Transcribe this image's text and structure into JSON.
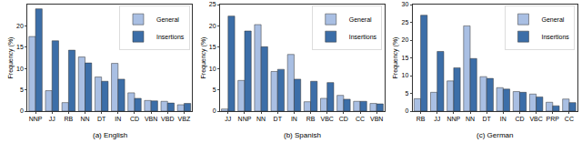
{
  "chart_data": [
    {
      "type": "bar",
      "title": "(a) English",
      "y_label": "Frequency (%)",
      "categories": [
        "NNP",
        "JJ",
        "RB",
        "NN",
        "DT",
        "IN",
        "CD",
        "VBN",
        "VBD",
        "VBZ"
      ],
      "series": [
        {
          "name": "General",
          "color": "#a9bfe3",
          "values": [
            17.5,
            4.8,
            2.0,
            12.7,
            8.0,
            11.2,
            4.3,
            2.5,
            2.3,
            1.5
          ]
        },
        {
          "name": "Insertions",
          "color": "#3c6ea8",
          "values": [
            24.0,
            16.5,
            14.3,
            11.3,
            7.0,
            7.5,
            3.0,
            2.4,
            1.9,
            1.8
          ]
        }
      ],
      "ylim": [
        0,
        25
      ],
      "yticks": [
        0,
        5,
        10,
        15,
        20
      ],
      "grid": false,
      "legend": "upper right"
    },
    {
      "type": "bar",
      "title": "(b) Spanish",
      "y_label": "Frequency (%)",
      "categories": [
        "JJ",
        "NNP",
        "NN",
        "DT",
        "IN",
        "RB",
        "VBC",
        "CD",
        "CC",
        "VBN"
      ],
      "series": [
        {
          "name": "General",
          "color": "#a9bfe3",
          "values": [
            0.5,
            7.2,
            20.3,
            9.3,
            13.3,
            2.2,
            3.0,
            3.7,
            2.3,
            1.8
          ]
        },
        {
          "name": "Insertions",
          "color": "#3c6ea8",
          "values": [
            22.3,
            18.8,
            15.1,
            9.8,
            7.5,
            7.0,
            6.7,
            2.8,
            2.3,
            1.7
          ]
        }
      ],
      "ylim": [
        0,
        25
      ],
      "yticks": [
        0,
        5,
        10,
        15,
        20,
        25
      ],
      "grid": false,
      "legend": "upper right"
    },
    {
      "type": "bar",
      "title": "(c) German",
      "y_label": "Frequency (%)",
      "categories": [
        "RB",
        "JJ",
        "NNP",
        "NN",
        "DT",
        "IN",
        "CD",
        "VBC",
        "PRP",
        "CC"
      ],
      "series": [
        {
          "name": "General",
          "color": "#a9bfe3",
          "values": [
            3.5,
            5.3,
            8.5,
            24.0,
            9.7,
            6.6,
            5.5,
            4.8,
            2.5,
            3.4
          ]
        },
        {
          "name": "Insertions",
          "color": "#3c6ea8",
          "values": [
            27.0,
            16.8,
            12.2,
            14.8,
            9.2,
            6.2,
            5.3,
            4.0,
            1.5,
            2.4
          ]
        }
      ],
      "ylim": [
        0,
        30
      ],
      "yticks": [
        0,
        5,
        10,
        15,
        20,
        25,
        30
      ],
      "grid": false,
      "legend": "upper right"
    }
  ]
}
